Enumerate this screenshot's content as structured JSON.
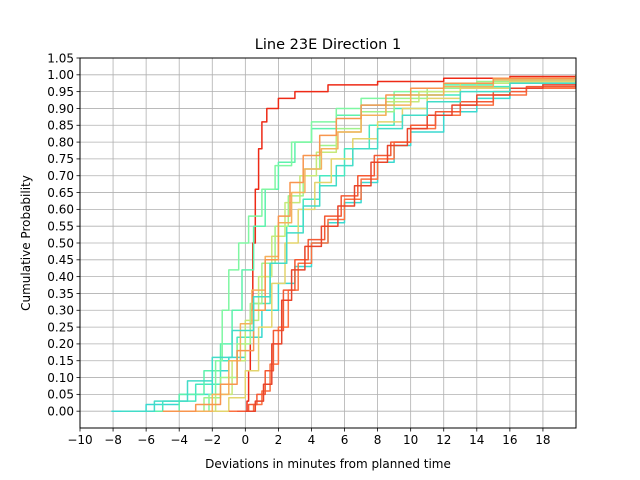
{
  "chart_data": {
    "type": "line",
    "title": "Line 23E Direction 1",
    "xlabel": "Deviations in minutes from planned time",
    "ylabel": "Cumulative Probability",
    "xlim": [
      -10,
      20
    ],
    "ylim": [
      -0.05,
      1.05
    ],
    "xticks": [
      -10,
      -8,
      -6,
      -4,
      -2,
      0,
      2,
      4,
      6,
      8,
      10,
      12,
      14,
      16,
      18
    ],
    "yticks": [
      0.0,
      0.05,
      0.1,
      0.15,
      0.2,
      0.25,
      0.3,
      0.35,
      0.4,
      0.45,
      0.5,
      0.55,
      0.6,
      0.65,
      0.7,
      0.75,
      0.8,
      0.85,
      0.9,
      0.95,
      1.0,
      1.05
    ],
    "grid": true,
    "legend": "none",
    "series": [
      {
        "color": "#ee2a16",
        "points": [
          [
            0,
            0.0
          ],
          [
            0.1,
            0.03
          ],
          [
            0.2,
            0.12
          ],
          [
            0.3,
            0.3
          ],
          [
            0.45,
            0.5
          ],
          [
            0.6,
            0.66
          ],
          [
            0.8,
            0.78
          ],
          [
            1.0,
            0.86
          ],
          [
            1.3,
            0.9
          ],
          [
            2,
            0.93
          ],
          [
            3,
            0.95
          ],
          [
            5,
            0.97
          ],
          [
            8,
            0.98
          ],
          [
            12,
            0.99
          ],
          [
            16,
            0.995
          ],
          [
            20,
            1.0
          ]
        ]
      },
      {
        "color": "#3ad9d0",
        "points": [
          [
            -8.1,
            0.0
          ],
          [
            -6,
            0.02
          ],
          [
            -4,
            0.05
          ],
          [
            -2,
            0.12
          ],
          [
            -1,
            0.16
          ],
          [
            0,
            0.22
          ],
          [
            1,
            0.3
          ],
          [
            2,
            0.38
          ],
          [
            3,
            0.43
          ],
          [
            4,
            0.5
          ],
          [
            5,
            0.56
          ],
          [
            6,
            0.62
          ],
          [
            7,
            0.68
          ],
          [
            8,
            0.74
          ],
          [
            9,
            0.79
          ],
          [
            10,
            0.83
          ],
          [
            12,
            0.89
          ],
          [
            14,
            0.93
          ],
          [
            16,
            0.96
          ],
          [
            18,
            0.975
          ],
          [
            20,
            0.985
          ]
        ]
      },
      {
        "color": "#46e8c0",
        "points": [
          [
            -7,
            0.0
          ],
          [
            -5,
            0.03
          ],
          [
            -3,
            0.08
          ],
          [
            -1.5,
            0.15
          ],
          [
            -0.5,
            0.22
          ],
          [
            0.5,
            0.32
          ],
          [
            1.5,
            0.44
          ],
          [
            2.5,
            0.55
          ],
          [
            3.5,
            0.63
          ],
          [
            4.5,
            0.7
          ],
          [
            6,
            0.78
          ],
          [
            7.5,
            0.85
          ],
          [
            9,
            0.9
          ],
          [
            11,
            0.94
          ],
          [
            13,
            0.965
          ],
          [
            16,
            0.98
          ],
          [
            20,
            0.99
          ]
        ]
      },
      {
        "color": "#5ef2ac",
        "points": [
          [
            -6,
            0.0
          ],
          [
            -4,
            0.05
          ],
          [
            -2.5,
            0.12
          ],
          [
            -1.5,
            0.2
          ],
          [
            -0.8,
            0.3
          ],
          [
            -0.2,
            0.42
          ],
          [
            0.5,
            0.55
          ],
          [
            1.2,
            0.66
          ],
          [
            2,
            0.74
          ],
          [
            3,
            0.8
          ],
          [
            4,
            0.84
          ],
          [
            5.5,
            0.88
          ],
          [
            7,
            0.91
          ],
          [
            9,
            0.94
          ],
          [
            12,
            0.97
          ],
          [
            15,
            0.985
          ],
          [
            20,
            0.995
          ]
        ]
      },
      {
        "color": "#7ff7a2",
        "points": [
          [
            -3,
            0.0
          ],
          [
            -2.2,
            0.05
          ],
          [
            -1.8,
            0.15
          ],
          [
            -1.4,
            0.3
          ],
          [
            -1,
            0.42
          ],
          [
            -0.4,
            0.5
          ],
          [
            0.2,
            0.58
          ],
          [
            1,
            0.66
          ],
          [
            1.8,
            0.73
          ],
          [
            2.8,
            0.8
          ],
          [
            4,
            0.86
          ],
          [
            5.5,
            0.9
          ],
          [
            7,
            0.93
          ],
          [
            9,
            0.95
          ],
          [
            12,
            0.975
          ],
          [
            16,
            0.99
          ],
          [
            20,
            1.0
          ]
        ]
      },
      {
        "color": "#a0f28c",
        "points": [
          [
            -4,
            0.0
          ],
          [
            -2.5,
            0.04
          ],
          [
            -1.5,
            0.1
          ],
          [
            -0.5,
            0.2
          ],
          [
            0.3,
            0.32
          ],
          [
            1,
            0.44
          ],
          [
            1.8,
            0.55
          ],
          [
            2.6,
            0.64
          ],
          [
            3.5,
            0.72
          ],
          [
            4.5,
            0.79
          ],
          [
            5.5,
            0.84
          ],
          [
            7,
            0.89
          ],
          [
            9,
            0.93
          ],
          [
            11,
            0.96
          ],
          [
            14,
            0.98
          ],
          [
            18,
            0.99
          ],
          [
            20,
            0.995
          ]
        ]
      },
      {
        "color": "#c6e97a",
        "points": [
          [
            -3,
            0.0
          ],
          [
            -1.8,
            0.05
          ],
          [
            -0.8,
            0.15
          ],
          [
            0,
            0.27
          ],
          [
            0.8,
            0.4
          ],
          [
            1.6,
            0.52
          ],
          [
            2.4,
            0.62
          ],
          [
            3.3,
            0.7
          ],
          [
            4.3,
            0.77
          ],
          [
            5.5,
            0.83
          ],
          [
            7,
            0.88
          ],
          [
            8.5,
            0.92
          ],
          [
            10.5,
            0.95
          ],
          [
            13,
            0.975
          ],
          [
            16,
            0.99
          ],
          [
            20,
            1.0
          ]
        ]
      },
      {
        "color": "#e3d46d",
        "points": [
          [
            -2,
            0.0
          ],
          [
            -1,
            0.04
          ],
          [
            0,
            0.12
          ],
          [
            0.8,
            0.25
          ],
          [
            1.6,
            0.38
          ],
          [
            2.4,
            0.5
          ],
          [
            3.2,
            0.6
          ],
          [
            4.2,
            0.68
          ],
          [
            5.2,
            0.75
          ],
          [
            6.5,
            0.81
          ],
          [
            8,
            0.86
          ],
          [
            9.5,
            0.9
          ],
          [
            11,
            0.93
          ],
          [
            13,
            0.96
          ],
          [
            16,
            0.98
          ],
          [
            20,
            0.99
          ]
        ]
      },
      {
        "color": "#f5b05c",
        "points": [
          [
            -3,
            0.0
          ],
          [
            -2,
            0.05
          ],
          [
            -1,
            0.15
          ],
          [
            -0.3,
            0.26
          ],
          [
            0.4,
            0.36
          ],
          [
            1.2,
            0.46
          ],
          [
            2,
            0.56
          ],
          [
            2.8,
            0.65
          ],
          [
            3.6,
            0.72
          ],
          [
            4.6,
            0.78
          ],
          [
            5.6,
            0.83
          ],
          [
            7,
            0.88
          ],
          [
            8.5,
            0.91
          ],
          [
            10,
            0.94
          ],
          [
            12,
            0.965
          ],
          [
            15,
            0.985
          ],
          [
            20,
            0.995
          ]
        ]
      },
      {
        "color": "#f8954e",
        "points": [
          [
            -5,
            0.0
          ],
          [
            -3,
            0.02
          ],
          [
            -1.5,
            0.08
          ],
          [
            -0.5,
            0.18
          ],
          [
            0.5,
            0.3
          ],
          [
            1.2,
            0.45
          ],
          [
            2,
            0.58
          ],
          [
            2.7,
            0.68
          ],
          [
            3.5,
            0.76
          ],
          [
            4.5,
            0.82
          ],
          [
            5.5,
            0.87
          ],
          [
            7,
            0.91
          ],
          [
            8.5,
            0.94
          ],
          [
            10,
            0.96
          ],
          [
            12,
            0.975
          ],
          [
            15,
            0.99
          ],
          [
            20,
            1.0
          ]
        ]
      },
      {
        "color": "#fb7040",
        "points": [
          [
            -1,
            0.0
          ],
          [
            0.5,
            0.02
          ],
          [
            1,
            0.06
          ],
          [
            1.5,
            0.14
          ],
          [
            2,
            0.25
          ],
          [
            2.6,
            0.36
          ],
          [
            3.2,
            0.44
          ],
          [
            4,
            0.5
          ],
          [
            5,
            0.57
          ],
          [
            6,
            0.63
          ],
          [
            7,
            0.69
          ],
          [
            8,
            0.75
          ],
          [
            9,
            0.8
          ],
          [
            10,
            0.84
          ],
          [
            11.5,
            0.88
          ],
          [
            13,
            0.91
          ],
          [
            15,
            0.94
          ],
          [
            17,
            0.96
          ],
          [
            20,
            0.975
          ]
        ]
      },
      {
        "color": "#f45a34",
        "points": [
          [
            -0.5,
            0.0
          ],
          [
            0.2,
            0.02
          ],
          [
            0.7,
            0.05
          ],
          [
            1.2,
            0.12
          ],
          [
            1.7,
            0.24
          ],
          [
            2.3,
            0.36
          ],
          [
            3,
            0.45
          ],
          [
            3.8,
            0.51
          ],
          [
            4.8,
            0.58
          ],
          [
            5.8,
            0.64
          ],
          [
            6.8,
            0.7
          ],
          [
            7.8,
            0.76
          ],
          [
            8.8,
            0.8
          ],
          [
            10,
            0.85
          ],
          [
            11.5,
            0.89
          ],
          [
            13,
            0.92
          ],
          [
            15,
            0.95
          ],
          [
            17,
            0.965
          ],
          [
            20,
            0.98
          ]
        ]
      },
      {
        "color": "#e8442a",
        "points": [
          [
            0,
            0.0
          ],
          [
            0.6,
            0.03
          ],
          [
            1.1,
            0.08
          ],
          [
            1.6,
            0.2
          ],
          [
            2.2,
            0.33
          ],
          [
            2.8,
            0.42
          ],
          [
            3.6,
            0.49
          ],
          [
            4.6,
            0.55
          ],
          [
            5.6,
            0.61
          ],
          [
            6.6,
            0.67
          ],
          [
            7.6,
            0.74
          ],
          [
            8.6,
            0.79
          ],
          [
            9.8,
            0.84
          ],
          [
            11,
            0.88
          ],
          [
            12.5,
            0.91
          ],
          [
            14,
            0.94
          ],
          [
            16,
            0.96
          ],
          [
            18,
            0.97
          ],
          [
            20,
            0.98
          ]
        ]
      },
      {
        "color": "#42dcc8",
        "points": [
          [
            -7.5,
            0.0
          ],
          [
            -5.5,
            0.03
          ],
          [
            -3.5,
            0.09
          ],
          [
            -2,
            0.16
          ],
          [
            -0.8,
            0.24
          ],
          [
            0.5,
            0.34
          ],
          [
            1.5,
            0.44
          ],
          [
            2.5,
            0.53
          ],
          [
            3.5,
            0.61
          ],
          [
            4.5,
            0.67
          ],
          [
            5.5,
            0.73
          ],
          [
            6.5,
            0.78
          ],
          [
            8,
            0.84
          ],
          [
            9.5,
            0.88
          ],
          [
            11,
            0.92
          ],
          [
            13,
            0.95
          ],
          [
            16,
            0.975
          ],
          [
            20,
            0.99
          ]
        ]
      }
    ]
  }
}
